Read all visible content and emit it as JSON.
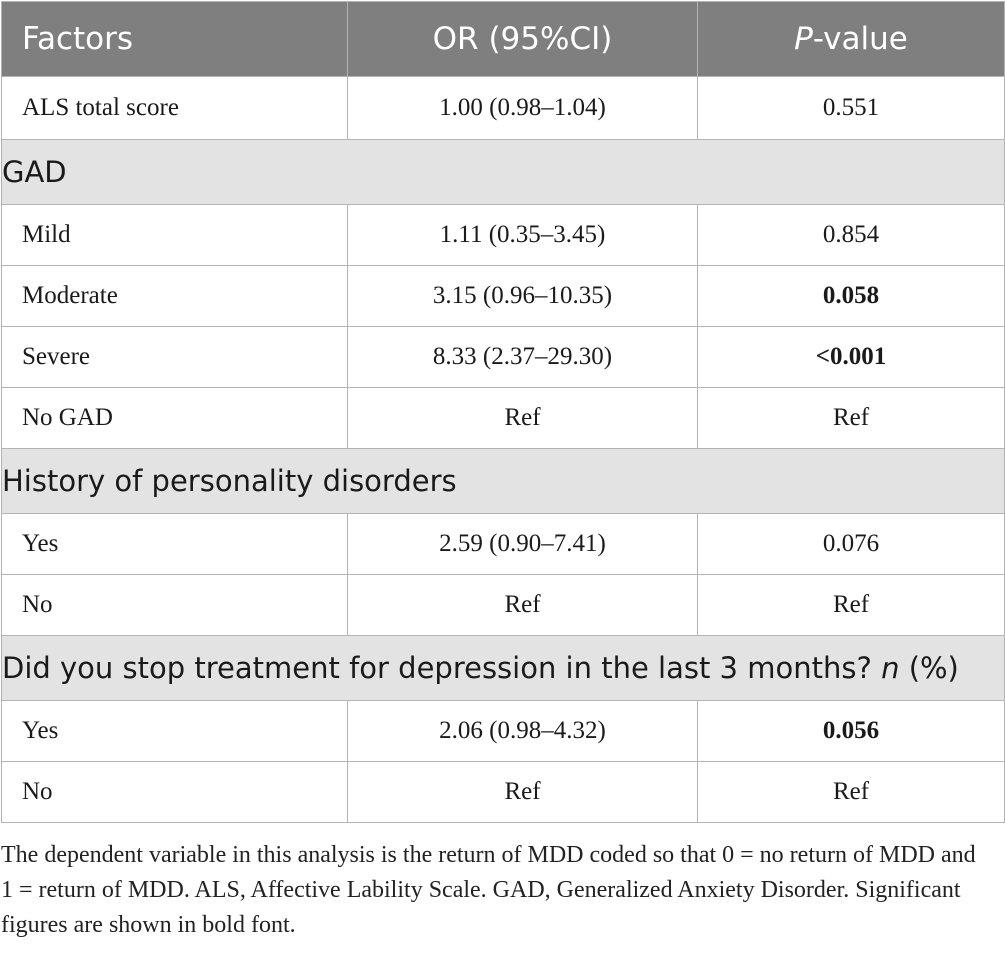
{
  "table": {
    "headers": {
      "factors": "Factors",
      "or_ci": "OR (95%CI)",
      "p_value_italic": "P",
      "p_value_rest": "-value"
    },
    "rows": [
      {
        "type": "data",
        "factor": "ALS total score",
        "or": "1.00 (0.98–1.04)",
        "p": "0.551",
        "bold": false
      },
      {
        "type": "group",
        "label": "GAD"
      },
      {
        "type": "data",
        "factor": "Mild",
        "or": "1.11 (0.35–3.45)",
        "p": "0.854",
        "bold": false
      },
      {
        "type": "data",
        "factor": "Moderate",
        "or": "3.15 (0.96–10.35)",
        "p": "0.058",
        "bold": true
      },
      {
        "type": "data",
        "factor": "Severe",
        "or": "8.33 (2.37–29.30)",
        "p": "<0.001",
        "bold": true
      },
      {
        "type": "data",
        "factor": "No GAD",
        "or": "Ref",
        "p": "Ref",
        "bold": false
      },
      {
        "type": "group",
        "label": "History of personality disorders"
      },
      {
        "type": "data",
        "factor": "Yes",
        "or": "2.59 (0.90–7.41)",
        "p": "0.076",
        "bold": false
      },
      {
        "type": "data",
        "factor": "No",
        "or": "Ref",
        "p": "Ref",
        "bold": false
      },
      {
        "type": "group",
        "label": "Did you stop treatment for depression in the last 3 months?",
        "label_italic": "n",
        "label_tail": "(%)"
      },
      {
        "type": "data",
        "factor": "Yes",
        "or": "2.06 (0.98–4.32)",
        "p": "0.056",
        "bold": true
      },
      {
        "type": "data",
        "factor": "No",
        "or": "Ref",
        "p": "Ref",
        "bold": false
      }
    ]
  },
  "footnote": "The dependent variable in this analysis is the return of MDD coded so that 0 = no return of MDD and 1 = return of MDD. ALS, Affective Lability Scale. GAD, Generalized Anxiety Disorder. Significant figures are shown in bold font."
}
